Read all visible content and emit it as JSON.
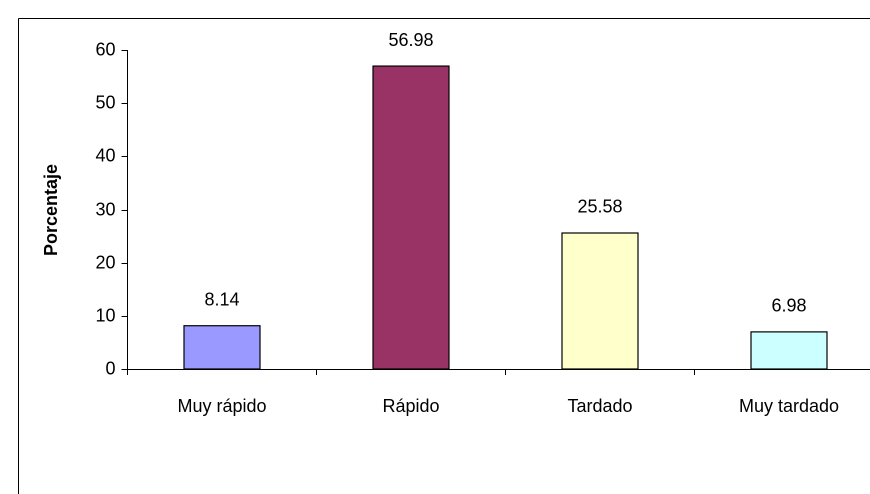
{
  "chart_data": {
    "type": "bar",
    "y_label": "Porcentaje",
    "categories": [
      "Muy rápido",
      "Rápido",
      "Tardado",
      "Muy tardado"
    ],
    "values": [
      8.14,
      56.98,
      25.58,
      6.98
    ],
    "colors": [
      "#9999ff",
      "#993366",
      "#ffffcc",
      "#ccffff"
    ],
    "ylim": [
      0,
      60
    ],
    "yticks": [
      0,
      10,
      20,
      30,
      40,
      50,
      60
    ],
    "grid": false
  }
}
